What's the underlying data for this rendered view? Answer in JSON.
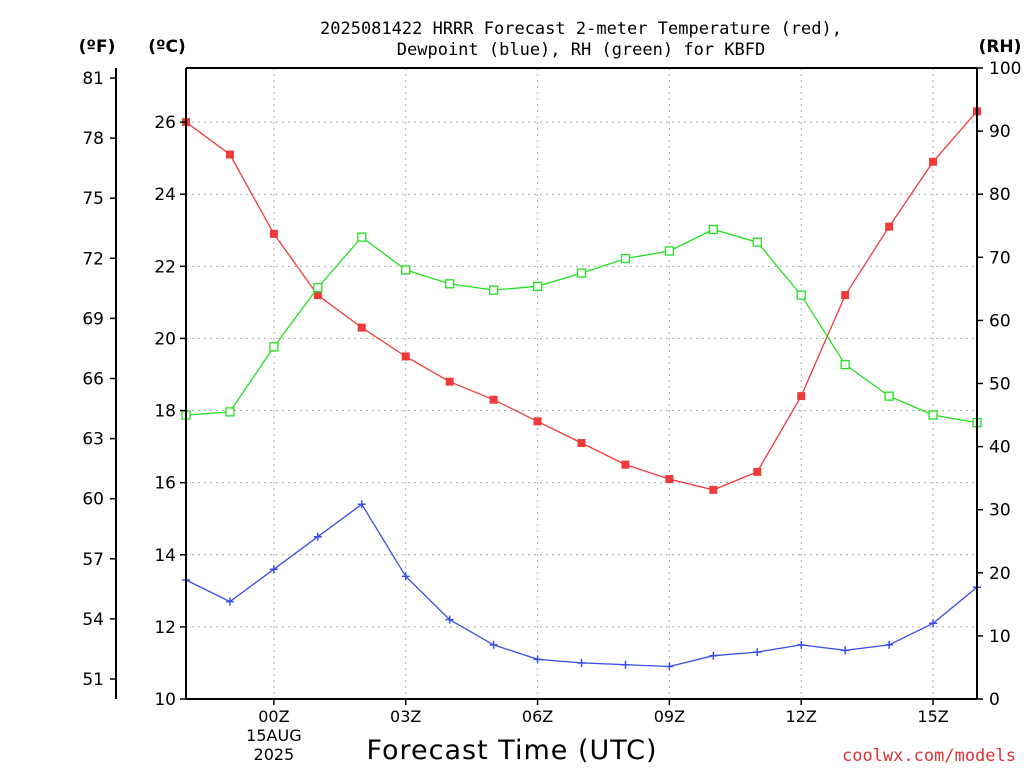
{
  "chart_data": {
    "type": "line",
    "title_line1": "2025081422 HRRR Forecast 2-meter Temperature (red),",
    "title_line2": "Dewpoint (blue), RH (green) for KBFD",
    "xlabel": "Forecast Time (UTC)",
    "unit_f": "(ºF)",
    "unit_c": "(ºC)",
    "unit_rh": "(RH)",
    "credit": "coolwx.com/models",
    "x_hours": [
      -2,
      -1,
      0,
      1,
      2,
      3,
      4,
      5,
      6,
      7,
      8,
      9,
      10,
      11,
      12,
      13,
      14,
      15,
      16
    ],
    "x_ticks": [
      {
        "hour": 0,
        "label": "00Z",
        "sub1": "15AUG",
        "sub2": "2025"
      },
      {
        "hour": 3,
        "label": "03Z",
        "sub1": "",
        "sub2": ""
      },
      {
        "hour": 6,
        "label": "06Z",
        "sub1": "",
        "sub2": ""
      },
      {
        "hour": 9,
        "label": "09Z",
        "sub1": "",
        "sub2": ""
      },
      {
        "hour": 12,
        "label": "12Z",
        "sub1": "",
        "sub2": ""
      },
      {
        "hour": 15,
        "label": "15Z",
        "sub1": "",
        "sub2": ""
      }
    ],
    "xlim": [
      -2,
      16
    ],
    "ylim_c": [
      10,
      27.5
    ],
    "ylim_rh": [
      0,
      100
    ],
    "y_ticks_c": [
      10,
      12,
      14,
      16,
      18,
      20,
      22,
      24,
      26
    ],
    "y_ticks_f": [
      51,
      54,
      57,
      60,
      63,
      66,
      69,
      72,
      75,
      78,
      81
    ],
    "y_ticks_rh": [
      0,
      10,
      20,
      30,
      40,
      50,
      60,
      70,
      80,
      90,
      100
    ],
    "grid": true,
    "series": [
      {
        "name": "Temperature",
        "axis": "c",
        "color": "#f03a3a",
        "marker": "filled-square",
        "values": [
          26.0,
          25.1,
          22.9,
          21.2,
          20.3,
          19.5,
          18.8,
          18.3,
          17.7,
          17.1,
          16.5,
          16.1,
          15.8,
          16.3,
          18.4,
          21.2,
          23.1,
          24.9,
          26.3
        ]
      },
      {
        "name": "Dewpoint",
        "axis": "c",
        "color": "#3a50e8",
        "marker": "plus",
        "values": [
          13.3,
          12.7,
          13.6,
          14.5,
          15.4,
          13.4,
          12.2,
          11.5,
          11.1,
          11.0,
          10.95,
          10.9,
          11.2,
          11.3,
          11.5,
          11.35,
          11.5,
          12.1,
          13.1
        ]
      },
      {
        "name": "RH",
        "axis": "rh",
        "color": "#22e022",
        "marker": "open-square",
        "values": [
          45,
          45.5,
          55.8,
          65.2,
          73.2,
          68.0,
          65.8,
          64.8,
          65.4,
          67.5,
          69.8,
          71.0,
          74.4,
          72.4,
          64.0,
          53.0,
          48.0,
          45.0,
          43.8
        ]
      }
    ]
  }
}
